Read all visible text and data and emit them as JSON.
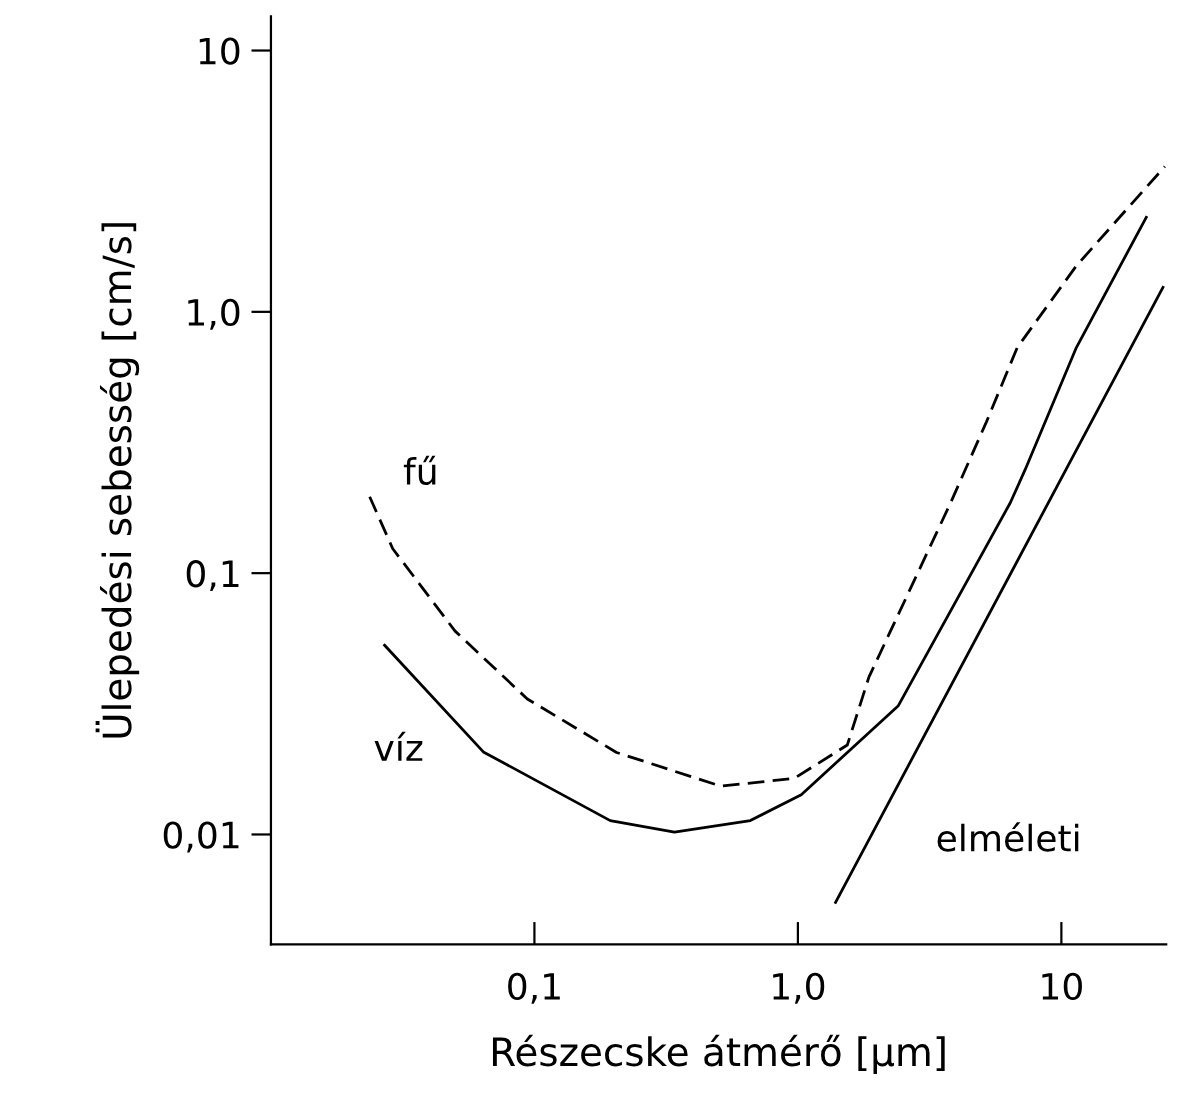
{
  "chart_data": {
    "type": "line",
    "xlabel": "Részecske átmérő [μm]",
    "ylabel": "Ülepedési sebesség [cm/s]",
    "log": "xy",
    "grid": false,
    "marker": "none",
    "xlim": [
      0.01,
      25
    ],
    "ylim": [
      0.0038,
      13.5
    ],
    "xticks": [
      {
        "value": 0.1,
        "label": "0,1"
      },
      {
        "value": 1,
        "label": "1,0"
      },
      {
        "value": 10,
        "label": "10"
      }
    ],
    "yticks": [
      {
        "value": 0.01,
        "label": "0,01"
      },
      {
        "value": 0.1,
        "label": "0,1"
      },
      {
        "value": 1,
        "label": "1,0"
      },
      {
        "value": 10,
        "label": "10"
      }
    ],
    "series": [
      {
        "name": "fű",
        "color": "#000000",
        "line_style": "dashed",
        "x": [
          0.0237,
          0.029,
          0.05,
          0.094,
          0.205,
          0.51,
          0.97,
          1.54,
          1.86,
          3.8,
          5.2,
          6.8,
          11.4,
          24.7
        ],
        "values": [
          0.196,
          0.124,
          0.06,
          0.033,
          0.0206,
          0.0153,
          0.0164,
          0.022,
          0.04,
          0.186,
          0.38,
          0.73,
          1.5,
          3.6
        ]
      },
      {
        "name": "víz",
        "color": "#000000",
        "line_style": "solid",
        "x": [
          0.027,
          0.064,
          0.194,
          0.34,
          0.66,
          1.03,
          2.4,
          6.4,
          7.3,
          11.4,
          21
        ],
        "values": [
          0.053,
          0.0207,
          0.0113,
          0.0102,
          0.0113,
          0.0142,
          0.031,
          0.186,
          0.25,
          0.73,
          2.3
        ]
      },
      {
        "name": "elméleti",
        "color": "#000000",
        "line_style": "solid",
        "x": [
          1.39,
          24.3
        ],
        "values": [
          0.0055,
          1.24
        ]
      }
    ]
  }
}
